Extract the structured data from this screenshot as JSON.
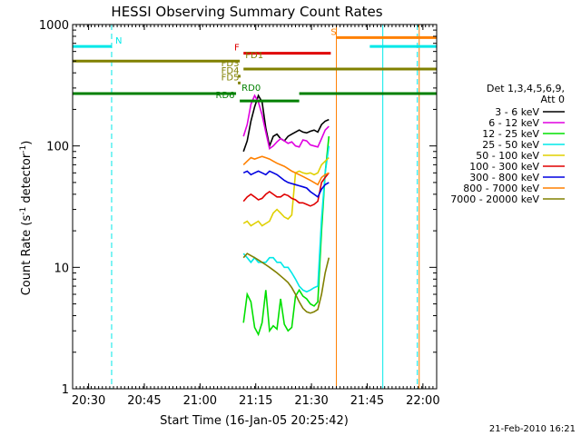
{
  "chart_data": {
    "type": "line",
    "title": "HESSI Observing Summary Count Rates",
    "xlabel": "Start Time (16-Jan-05 20:25:42)",
    "ylabel_parts": [
      "Count Rate (s",
      "-1",
      " detector",
      "-1",
      ")"
    ],
    "xlim_minutes": [
      0,
      98
    ],
    "ylim": [
      1,
      1000
    ],
    "yscale": "log",
    "x_ticks": [
      {
        "label": "20:30",
        "t": 4.3
      },
      {
        "label": "20:45",
        "t": 19.3
      },
      {
        "label": "21:00",
        "t": 34.3
      },
      {
        "label": "21:15",
        "t": 49.3
      },
      {
        "label": "21:30",
        "t": 64.3
      },
      {
        "label": "21:45",
        "t": 79.3
      },
      {
        "label": "22:00",
        "t": 94.3
      }
    ],
    "y_ticks": [
      {
        "label": "1",
        "v": 1
      },
      {
        "label": "10",
        "v": 10
      },
      {
        "label": "100",
        "v": 100
      },
      {
        "label": "1000",
        "v": 1000
      }
    ],
    "legend": {
      "header": [
        "Det 1,3,4,5,6,9,",
        "Att 0"
      ],
      "placement": "right"
    },
    "series": [
      {
        "name": "3 - 6 keV",
        "color": "#000000",
        "points": [
          [
            46,
            90
          ],
          [
            47,
            110
          ],
          [
            48,
            160
          ],
          [
            49,
            210
          ],
          [
            50,
            260
          ],
          [
            51,
            230
          ],
          [
            52,
            140
          ],
          [
            53,
            100
          ],
          [
            54,
            120
          ],
          [
            55,
            125
          ],
          [
            56,
            115
          ],
          [
            57,
            110
          ],
          [
            58,
            120
          ],
          [
            59,
            125
          ],
          [
            60,
            130
          ],
          [
            61,
            135
          ],
          [
            62,
            130
          ],
          [
            63,
            128
          ],
          [
            64,
            132
          ],
          [
            65,
            135
          ],
          [
            66,
            130
          ],
          [
            67,
            150
          ],
          [
            68,
            160
          ],
          [
            69,
            165
          ]
        ]
      },
      {
        "name": "6 - 12 keV",
        "color": "#e000e0",
        "points": [
          [
            46,
            120
          ],
          [
            47,
            150
          ],
          [
            48,
            220
          ],
          [
            49,
            260
          ],
          [
            50,
            230
          ],
          [
            51,
            180
          ],
          [
            52,
            130
          ],
          [
            53,
            95
          ],
          [
            54,
            100
          ],
          [
            55,
            108
          ],
          [
            56,
            115
          ],
          [
            57,
            110
          ],
          [
            58,
            105
          ],
          [
            59,
            108
          ],
          [
            60,
            100
          ],
          [
            61,
            98
          ],
          [
            62,
            112
          ],
          [
            63,
            110
          ],
          [
            64,
            102
          ],
          [
            65,
            100
          ],
          [
            66,
            98
          ],
          [
            67,
            115
          ],
          [
            68,
            135
          ],
          [
            69,
            145
          ]
        ]
      },
      {
        "name": "12 - 25 keV",
        "color": "#00e000",
        "points": [
          [
            46,
            3.5
          ],
          [
            47,
            6
          ],
          [
            48,
            5.2
          ],
          [
            49,
            3.2
          ],
          [
            50,
            2.8
          ],
          [
            51,
            3.5
          ],
          [
            52,
            6.5
          ],
          [
            53,
            3.0
          ],
          [
            54,
            3.3
          ],
          [
            55,
            3.1
          ],
          [
            56,
            5.5
          ],
          [
            57,
            3.4
          ],
          [
            58,
            3.0
          ],
          [
            59,
            3.2
          ],
          [
            60,
            5.8
          ],
          [
            61,
            6.5
          ],
          [
            62,
            5.8
          ],
          [
            63,
            5.5
          ],
          [
            64,
            5.0
          ],
          [
            65,
            4.8
          ],
          [
            66,
            5.2
          ],
          [
            67,
            20
          ],
          [
            68,
            60
          ],
          [
            69,
            120
          ]
        ]
      },
      {
        "name": "25 - 50 keV",
        "color": "#00e8e8",
        "points": [
          [
            46,
            13
          ],
          [
            47,
            12
          ],
          [
            48,
            11
          ],
          [
            49,
            12
          ],
          [
            50,
            11
          ],
          [
            51,
            11
          ],
          [
            52,
            11
          ],
          [
            53,
            12
          ],
          [
            54,
            12
          ],
          [
            55,
            11
          ],
          [
            56,
            11
          ],
          [
            57,
            10
          ],
          [
            58,
            10
          ],
          [
            59,
            9
          ],
          [
            60,
            8
          ],
          [
            61,
            7
          ],
          [
            62,
            6.5
          ],
          [
            63,
            6.3
          ],
          [
            64,
            6.5
          ],
          [
            65,
            6.8
          ],
          [
            66,
            7
          ],
          [
            67,
            25
          ],
          [
            68,
            60
          ],
          [
            69,
            100
          ]
        ]
      },
      {
        "name": "50 - 100 keV",
        "color": "#e0d000",
        "points": [
          [
            46,
            23
          ],
          [
            47,
            24
          ],
          [
            48,
            22
          ],
          [
            49,
            23
          ],
          [
            50,
            24
          ],
          [
            51,
            22
          ],
          [
            52,
            23
          ],
          [
            53,
            24
          ],
          [
            54,
            28
          ],
          [
            55,
            30
          ],
          [
            56,
            28
          ],
          [
            57,
            26
          ],
          [
            58,
            25
          ],
          [
            59,
            27
          ],
          [
            60,
            60
          ],
          [
            61,
            62
          ],
          [
            62,
            60
          ],
          [
            63,
            59
          ],
          [
            64,
            60
          ],
          [
            65,
            58
          ],
          [
            66,
            60
          ],
          [
            67,
            70
          ],
          [
            68,
            75
          ],
          [
            69,
            80
          ]
        ]
      },
      {
        "name": "100 - 300 keV",
        "color": "#e00000",
        "points": [
          [
            46,
            35
          ],
          [
            47,
            38
          ],
          [
            48,
            40
          ],
          [
            49,
            38
          ],
          [
            50,
            36
          ],
          [
            51,
            37
          ],
          [
            52,
            40
          ],
          [
            53,
            42
          ],
          [
            54,
            40
          ],
          [
            55,
            38
          ],
          [
            56,
            38
          ],
          [
            57,
            40
          ],
          [
            58,
            39
          ],
          [
            59,
            37
          ],
          [
            60,
            36
          ],
          [
            61,
            34
          ],
          [
            62,
            34
          ],
          [
            63,
            33
          ],
          [
            64,
            32
          ],
          [
            65,
            33
          ],
          [
            66,
            35
          ],
          [
            67,
            50
          ],
          [
            68,
            55
          ],
          [
            69,
            60
          ]
        ]
      },
      {
        "name": "300 - 800 keV",
        "color": "#0000e0",
        "points": [
          [
            46,
            60
          ],
          [
            47,
            62
          ],
          [
            48,
            58
          ],
          [
            49,
            60
          ],
          [
            50,
            62
          ],
          [
            51,
            60
          ],
          [
            52,
            58
          ],
          [
            53,
            62
          ],
          [
            54,
            60
          ],
          [
            55,
            58
          ],
          [
            56,
            55
          ],
          [
            57,
            52
          ],
          [
            58,
            50
          ],
          [
            59,
            49
          ],
          [
            60,
            48
          ],
          [
            61,
            47
          ],
          [
            62,
            46
          ],
          [
            63,
            45
          ],
          [
            64,
            42
          ],
          [
            65,
            40
          ],
          [
            66,
            38
          ],
          [
            67,
            44
          ],
          [
            68,
            48
          ],
          [
            69,
            50
          ]
        ]
      },
      {
        "name": "800 - 7000 keV",
        "color": "#ff8000",
        "points": [
          [
            46,
            70
          ],
          [
            47,
            75
          ],
          [
            48,
            80
          ],
          [
            49,
            78
          ],
          [
            50,
            80
          ],
          [
            51,
            82
          ],
          [
            52,
            80
          ],
          [
            53,
            78
          ],
          [
            54,
            75
          ],
          [
            55,
            72
          ],
          [
            56,
            70
          ],
          [
            57,
            68
          ],
          [
            58,
            65
          ],
          [
            59,
            62
          ],
          [
            60,
            60
          ],
          [
            61,
            58
          ],
          [
            62,
            56
          ],
          [
            63,
            54
          ],
          [
            64,
            52
          ],
          [
            65,
            50
          ],
          [
            66,
            48
          ],
          [
            67,
            55
          ],
          [
            68,
            58
          ],
          [
            69,
            60
          ]
        ]
      },
      {
        "name": "7000 - 20000 keV",
        "color": "#808000",
        "points": [
          [
            46,
            12
          ],
          [
            47,
            13
          ],
          [
            48,
            12.5
          ],
          [
            49,
            12
          ],
          [
            50,
            11.5
          ],
          [
            51,
            11
          ],
          [
            52,
            10.5
          ],
          [
            53,
            10
          ],
          [
            54,
            9.5
          ],
          [
            55,
            9
          ],
          [
            56,
            8.5
          ],
          [
            57,
            8
          ],
          [
            58,
            7.5
          ],
          [
            59,
            6.8
          ],
          [
            60,
            6
          ],
          [
            61,
            5.2
          ],
          [
            62,
            4.6
          ],
          [
            63,
            4.3
          ],
          [
            64,
            4.2
          ],
          [
            65,
            4.3
          ],
          [
            66,
            4.5
          ],
          [
            67,
            6
          ],
          [
            68,
            9
          ],
          [
            69,
            12
          ]
        ]
      }
    ],
    "flags": [
      {
        "label": "N",
        "color": "#00e8e8",
        "y": 660,
        "segments": [
          [
            0,
            10.5
          ],
          [
            80,
            98
          ]
        ],
        "label_t": 11.5
      },
      {
        "label": "S",
        "color": "#ff8000",
        "y": 780,
        "segments": [
          [
            71,
            98
          ]
        ],
        "label_t": 69.5
      },
      {
        "label": "F",
        "color": "#e00000",
        "y": 580,
        "segments": [
          [
            46,
            69.5
          ]
        ],
        "label_t": 43.5
      },
      {
        "label": "FD1",
        "color": "#808000",
        "y": 500,
        "segments": [
          [
            0,
            45
          ]
        ],
        "label_t": 46.5
      },
      {
        "label": "FD3",
        "color": "#808000",
        "y": 430,
        "segments": [
          [
            46,
            98
          ]
        ],
        "label_t": 40
      },
      {
        "label": "FD4",
        "color": "#808000",
        "y": 375,
        "segments": [
          [
            44.5,
            45.2
          ]
        ],
        "label_t": 40
      },
      {
        "label": "FD5",
        "color": "#808000",
        "y": 330,
        "segments": [
          [
            44.5,
            45.2
          ]
        ],
        "label_t": 40
      },
      {
        "label": "RD0",
        "color": "#008000",
        "y": 270,
        "segments": [
          [
            0,
            44
          ],
          [
            61,
            98
          ]
        ],
        "label_t": 45.5
      },
      {
        "label": "RD6",
        "color": "#008000",
        "y": 235,
        "segments": [
          [
            45,
            61
          ]
        ],
        "label_t": 38.5
      }
    ],
    "vlines": [
      {
        "t": 0,
        "color": "#00e8e8",
        "style": "solid"
      },
      {
        "t": 10.5,
        "color": "#00e8e8",
        "style": "dashed"
      },
      {
        "t": 71,
        "color": "#ff8000",
        "style": "solid"
      },
      {
        "t": 83.5,
        "color": "#00e8e8",
        "style": "solid"
      },
      {
        "t": 92.8,
        "color": "#00e8e8",
        "style": "dashed"
      },
      {
        "t": 93.3,
        "color": "#ff8000",
        "style": "solid"
      }
    ],
    "footer_date": "21-Feb-2010 16:21"
  }
}
